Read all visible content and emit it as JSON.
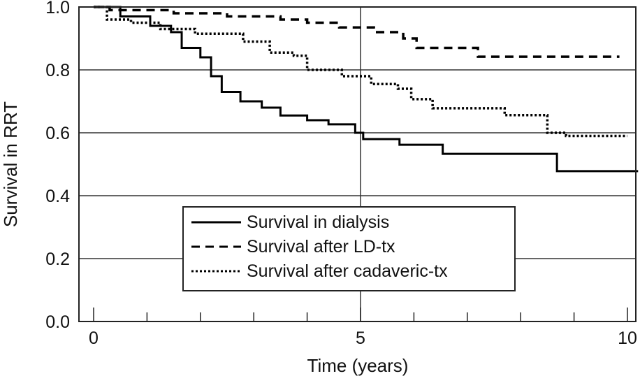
{
  "chart_data": {
    "type": "line",
    "title": "",
    "xlabel": "Time (years)",
    "ylabel": "Survival in RRT",
    "xlim": [
      0,
      10
    ],
    "ylim": [
      0,
      1
    ],
    "xticks": [
      "0",
      "5",
      "10"
    ],
    "yticks": [
      "0.0",
      "0.2",
      "0.4",
      "0.6",
      "0.8",
      "1.0"
    ],
    "grid": true,
    "legend_position": "bottom-center",
    "series": [
      {
        "name": "Survival in dialysis",
        "style": "solid",
        "x": [
          0,
          0.5,
          1.06,
          1.45,
          1.65,
          2.0,
          2.2,
          2.4,
          2.75,
          3.15,
          3.5,
          4.0,
          4.4,
          4.9,
          5.05,
          5.73,
          6.54,
          8.68,
          10.2
        ],
        "y": [
          1.0,
          0.97,
          0.94,
          0.92,
          0.87,
          0.84,
          0.78,
          0.73,
          0.7,
          0.68,
          0.655,
          0.64,
          0.627,
          0.6,
          0.58,
          0.562,
          0.533,
          0.478,
          0.478
        ]
      },
      {
        "name": "Survival after LD-tx",
        "style": "dashed",
        "x": [
          0,
          0.3,
          1.5,
          2.5,
          3.5,
          4.0,
          4.6,
          5.25,
          5.8,
          6.05,
          7.2,
          9.85
        ],
        "y": [
          1.0,
          0.99,
          0.98,
          0.97,
          0.96,
          0.95,
          0.935,
          0.92,
          0.9,
          0.87,
          0.842,
          0.842
        ]
      },
      {
        "name": "Survival after cadaveric-tx",
        "style": "dotted",
        "x": [
          0,
          0.25,
          0.7,
          1.25,
          1.9,
          2.8,
          3.3,
          3.75,
          4.0,
          4.65,
          5.2,
          5.7,
          5.95,
          6.35,
          7.7,
          8.5,
          8.85,
          10.0
        ],
        "y": [
          1.0,
          0.96,
          0.95,
          0.93,
          0.915,
          0.89,
          0.855,
          0.845,
          0.8,
          0.78,
          0.755,
          0.74,
          0.707,
          0.678,
          0.656,
          0.6,
          0.59,
          0.59
        ]
      }
    ]
  }
}
